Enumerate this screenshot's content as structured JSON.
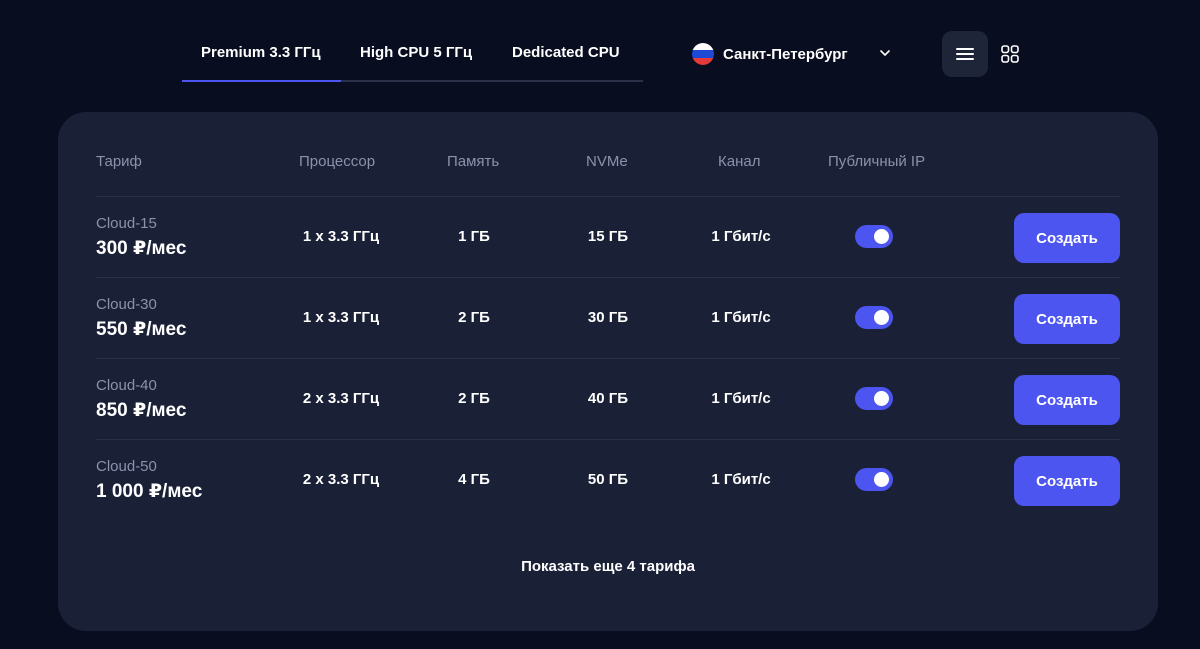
{
  "tabs": [
    {
      "label": "Premium 3.3 ГГц",
      "active": true
    },
    {
      "label": "High CPU 5 ГГц",
      "active": false
    },
    {
      "label": "Dedicated CPU",
      "active": false
    }
  ],
  "location": {
    "city": "Санкт-Петербург",
    "flag_icon": "russia-flag-icon"
  },
  "view": {
    "list_icon": "list-view-icon",
    "grid_icon": "grid-view-icon",
    "active": "list"
  },
  "colors": {
    "accent": "#4c55f0",
    "card_bg": "#1a2036",
    "page_bg": "#080d1f",
    "muted_text": "#8a93ab"
  },
  "table": {
    "headers": [
      "Тариф",
      "Процессор",
      "Память",
      "NVMe",
      "Канал",
      "Публичный IP"
    ],
    "rows": [
      {
        "name": "Cloud-15",
        "price": "300 ₽/мес",
        "cpu": "1 x 3.3 ГГц",
        "memory": "1 ГБ",
        "nvme": "15 ГБ",
        "channel": "1 Гбит/с",
        "public_ip": true,
        "button": "Создать"
      },
      {
        "name": "Cloud-30",
        "price": "550 ₽/мес",
        "cpu": "1 x 3.3 ГГц",
        "memory": "2 ГБ",
        "nvme": "30 ГБ",
        "channel": "1 Гбит/с",
        "public_ip": true,
        "button": "Создать"
      },
      {
        "name": "Cloud-40",
        "price": "850 ₽/мес",
        "cpu": "2 x 3.3 ГГц",
        "memory": "2 ГБ",
        "nvme": "40 ГБ",
        "channel": "1 Гбит/с",
        "public_ip": true,
        "button": "Создать"
      },
      {
        "name": "Cloud-50",
        "price": "1 000 ₽/мес",
        "cpu": "2 x 3.3 ГГц",
        "memory": "4 ГБ",
        "nvme": "50 ГБ",
        "channel": "1 Гбит/с",
        "public_ip": true,
        "button": "Создать"
      }
    ]
  },
  "show_more": "Показать еще 4 тарифа"
}
